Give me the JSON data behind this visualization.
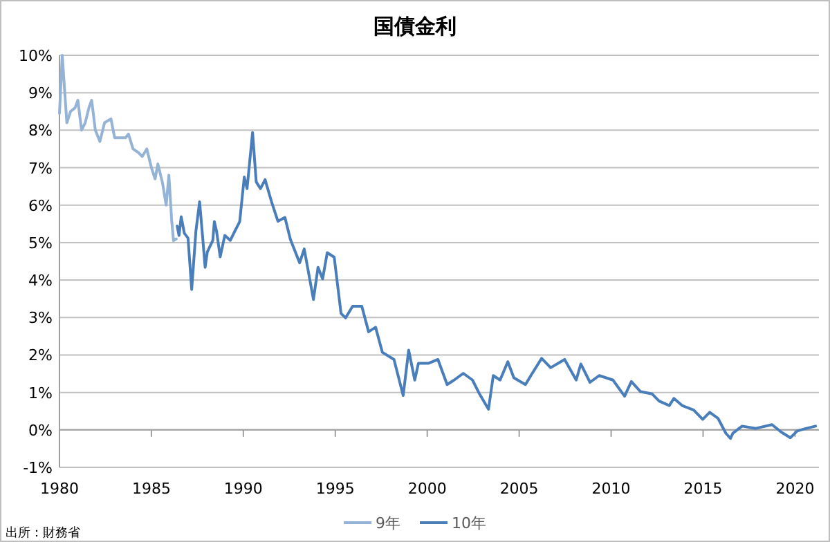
{
  "chart_data": {
    "type": "line",
    "title": "国債金利",
    "xlim": [
      1980,
      2021.3
    ],
    "xticks": [
      1980,
      1985,
      1990,
      1995,
      2000,
      2005,
      2010,
      2015,
      2020
    ],
    "ylim": [
      -1,
      10
    ],
    "yticks": [
      {
        "value": -1,
        "label": "-1%"
      },
      {
        "value": 0,
        "label": "0%"
      },
      {
        "value": 1,
        "label": "1%"
      },
      {
        "value": 2,
        "label": "2%"
      },
      {
        "value": 3,
        "label": "3%"
      },
      {
        "value": 4,
        "label": "4%"
      },
      {
        "value": 5,
        "label": "5%"
      },
      {
        "value": 6,
        "label": "6%"
      },
      {
        "value": 7,
        "label": "7%"
      },
      {
        "value": 8,
        "label": "8%"
      },
      {
        "value": 9,
        "label": "9%"
      },
      {
        "value": 10,
        "label": "10%"
      }
    ],
    "grid": "y",
    "legend": "bottom",
    "marker": "none",
    "line_style": "solid",
    "annotations": [
      "出所：財務省"
    ],
    "series": [
      {
        "name": "9年",
        "color": "#95b3d7",
        "x": [
          1980.0,
          1980.15,
          1980.4,
          1980.6,
          1980.85,
          1981.0,
          1981.2,
          1981.4,
          1981.6,
          1981.75,
          1981.95,
          1982.2,
          1982.45,
          1982.8,
          1983.0,
          1983.3,
          1983.6,
          1983.75,
          1984.0,
          1984.3,
          1984.5,
          1984.75,
          1985.0,
          1985.2,
          1985.35,
          1985.6,
          1985.8,
          1985.95,
          1986.1,
          1986.2,
          1986.35
        ],
        "values": [
          8.45,
          10.0,
          8.2,
          8.5,
          8.6,
          8.8,
          8.0,
          8.2,
          8.6,
          8.8,
          8.0,
          7.7,
          8.2,
          8.3,
          7.8,
          7.8,
          7.8,
          7.9,
          7.5,
          7.4,
          7.3,
          7.5,
          7.0,
          6.7,
          7.1,
          6.6,
          6.0,
          6.8,
          5.6,
          5.05,
          5.1
        ]
      },
      {
        "name": "10年",
        "color": "#4a7ebb",
        "x": [
          1986.4,
          1986.5,
          1986.62,
          1986.79,
          1986.99,
          1987.19,
          1987.42,
          1987.62,
          1987.79,
          1987.92,
          1988.04,
          1988.34,
          1988.42,
          1988.54,
          1988.74,
          1988.99,
          1989.29,
          1989.54,
          1989.8,
          1990.05,
          1990.2,
          1990.5,
          1990.7,
          1990.93,
          1991.18,
          1991.55,
          1991.88,
          1992.26,
          1992.56,
          1993.06,
          1993.31,
          1993.81,
          1994.06,
          1994.31,
          1994.56,
          1994.94,
          1995.31,
          1995.56,
          1995.94,
          1996.44,
          1996.81,
          1997.19,
          1997.56,
          1998.19,
          1998.69,
          1998.99,
          1999.32,
          1999.52,
          2000.08,
          2000.58,
          2001.08,
          2001.46,
          2001.96,
          2002.46,
          2002.84,
          2003.33,
          2003.59,
          2003.96,
          2004.38,
          2004.71,
          2005.34,
          2005.71,
          2006.22,
          2006.71,
          2007.47,
          2008.1,
          2008.35,
          2008.85,
          2009.35,
          2010.1,
          2010.73,
          2011.1,
          2011.6,
          2012.23,
          2012.61,
          2013.16,
          2013.41,
          2013.86,
          2014.49,
          2014.98,
          2015.36,
          2015.81,
          2016.24,
          2016.49,
          2016.62,
          2017.12,
          2017.87,
          2018.75,
          2019.25,
          2019.75,
          2020.12,
          2020.62,
          2021.12
        ],
        "values": [
          5.44,
          5.19,
          5.69,
          5.25,
          5.12,
          3.75,
          5.31,
          6.09,
          5.12,
          4.34,
          4.75,
          5.06,
          5.56,
          5.31,
          4.62,
          5.19,
          5.06,
          5.31,
          5.56,
          6.75,
          6.44,
          7.94,
          6.62,
          6.44,
          6.68,
          6.06,
          5.57,
          5.67,
          5.08,
          4.46,
          4.83,
          3.48,
          4.34,
          4.03,
          4.73,
          4.61,
          3.11,
          2.99,
          3.3,
          3.3,
          2.62,
          2.74,
          2.07,
          1.88,
          0.92,
          2.13,
          1.33,
          1.78,
          1.78,
          1.88,
          1.21,
          1.33,
          1.51,
          1.33,
          0.96,
          0.55,
          1.45,
          1.33,
          1.82,
          1.39,
          1.21,
          1.51,
          1.91,
          1.66,
          1.88,
          1.33,
          1.76,
          1.27,
          1.45,
          1.33,
          0.9,
          1.29,
          1.02,
          0.96,
          0.77,
          0.65,
          0.84,
          0.65,
          0.53,
          0.28,
          0.47,
          0.31,
          -0.09,
          -0.23,
          -0.09,
          0.1,
          0.04,
          0.14,
          -0.06,
          -0.21,
          -0.03,
          0.04,
          0.1
        ]
      }
    ]
  }
}
